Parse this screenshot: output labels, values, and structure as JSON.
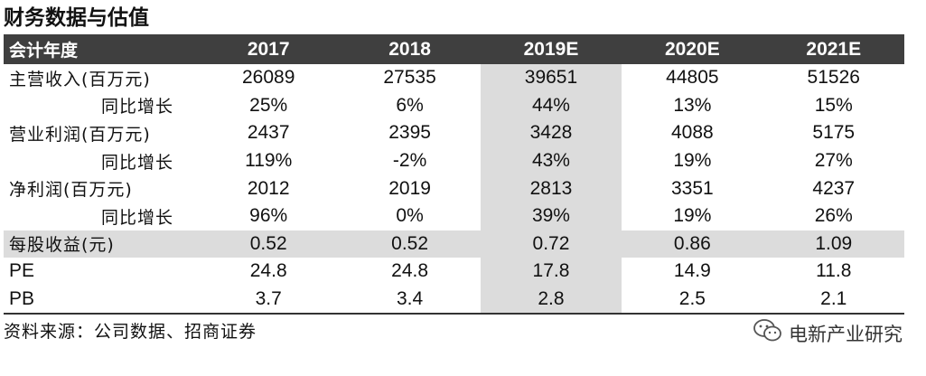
{
  "title": "财务数据与估值",
  "table": {
    "header": [
      "会计年度",
      "2017",
      "2018",
      "2019E",
      "2020E",
      "2021E"
    ],
    "rows": [
      {
        "label": "主营收入(百万元)",
        "values": [
          "26089",
          "27535",
          "39651",
          "44805",
          "51526"
        ]
      },
      {
        "label": "同比增长",
        "values": [
          "25%",
          "6%",
          "44%",
          "13%",
          "15%"
        ]
      },
      {
        "label": "营业利润(百万元)",
        "values": [
          "2437",
          "2395",
          "3428",
          "4088",
          "5175"
        ]
      },
      {
        "label": "同比增长",
        "values": [
          "119%",
          "-2%",
          "43%",
          "19%",
          "27%"
        ]
      },
      {
        "label": "净利润(百万元)",
        "values": [
          "2012",
          "2019",
          "2813",
          "3351",
          "4237"
        ]
      },
      {
        "label": "同比增长",
        "values": [
          "96%",
          "0%",
          "39%",
          "19%",
          "26%"
        ]
      },
      {
        "label": "每股收益(元)",
        "values": [
          "0.52",
          "0.52",
          "0.72",
          "0.86",
          "1.09"
        ]
      },
      {
        "label": "PE",
        "values": [
          "24.8",
          "24.8",
          "17.8",
          "14.9",
          "11.8"
        ]
      },
      {
        "label": "PB",
        "values": [
          "3.7",
          "3.4",
          "2.8",
          "2.5",
          "2.1"
        ]
      }
    ]
  },
  "source": "资料来源：公司数据、招商证券",
  "watermark": {
    "text": "电新产业研究",
    "icon": "wechat-icon"
  }
}
